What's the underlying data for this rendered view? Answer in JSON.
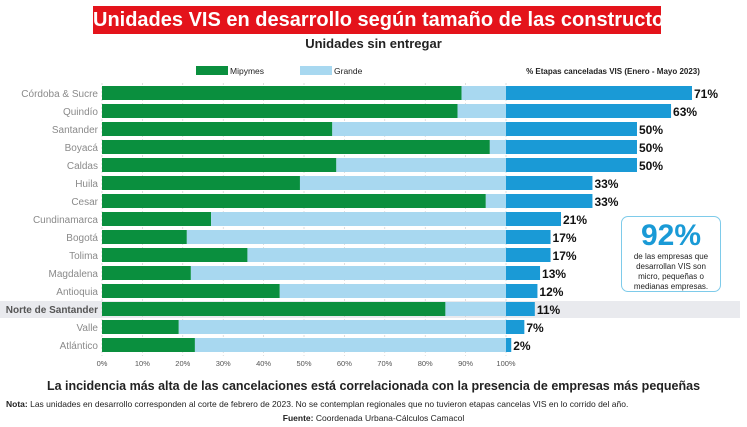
{
  "header": {
    "title": "Unidades VIS en desarrollo según tamaño de las constructoras",
    "subtitle": "Unidades sin entregar"
  },
  "legend": {
    "mipymes": "Mipymes",
    "grande": "Grande",
    "right_panel": "% Etapas canceladas VIS (Enero - Mayo 2023)"
  },
  "callout": {
    "big": "92%",
    "text": "de las empresas que desarrollan VIS son micro, pequeñas o medianas empresas."
  },
  "footer": {
    "main": "La incidencia más alta de las cancelaciones está correlacionada con la presencia de empresas más pequeñas",
    "note_label": "Nota:",
    "note_text": " Las unidades en desarrollo corresponden al corte de febrero de 2023. No se contemplan regionales que no tuvieron etapas cancelas VIS en lo corrido del año.",
    "source_label": "Fuente:",
    "source_text": " Coordenada Urbana-Cálculos Camacol"
  },
  "colors": {
    "mipymes": "#0a8f3e",
    "grande": "#a8d8f0",
    "cancel": "#1a9ad6",
    "highlight_row": "#e9eaee",
    "label_gray": "#8a8a8a"
  },
  "chart_data": [
    {
      "type": "bar",
      "orientation": "horizontal",
      "stacked": "percent",
      "categories": [
        "Córdoba & Sucre",
        "Quindío",
        "Santander",
        "Boyacá",
        "Caldas",
        "Huila",
        "Cesar",
        "Cundinamarca",
        "Bogotá",
        "Tolima",
        "Magdalena",
        "Antioquia",
        "Norte de Santander",
        "Valle",
        "Atlántico"
      ],
      "highlighted_category": "Norte de Santander",
      "series": [
        {
          "name": "Mipymes",
          "values": [
            89,
            88,
            57,
            96,
            58,
            49,
            95,
            27,
            21,
            36,
            22,
            44,
            85,
            19,
            23
          ]
        },
        {
          "name": "Grande",
          "values": [
            11,
            12,
            43,
            4,
            42,
            51,
            5,
            73,
            79,
            64,
            78,
            56,
            15,
            81,
            77
          ]
        }
      ],
      "x_ticks": [
        "0%",
        "10%",
        "20%",
        "30%",
        "40%",
        "50%",
        "60%",
        "70%",
        "80%",
        "90%",
        "100%"
      ],
      "xlim": [
        0,
        100
      ]
    },
    {
      "type": "bar",
      "orientation": "horizontal",
      "title": "% Etapas canceladas VIS (Enero - Mayo 2023)",
      "categories": [
        "Córdoba & Sucre",
        "Quindío",
        "Santander",
        "Boyacá",
        "Caldas",
        "Huila",
        "Cesar",
        "Cundinamarca",
        "Bogotá",
        "Tolima",
        "Magdalena",
        "Antioquia",
        "Norte de Santander",
        "Valle",
        "Atlántico"
      ],
      "values": [
        71,
        63,
        50,
        50,
        50,
        33,
        33,
        21,
        17,
        17,
        13,
        12,
        11,
        7,
        2
      ],
      "labels": [
        "71%",
        "63%",
        "50%",
        "50%",
        "50%",
        "33%",
        "33%",
        "21%",
        "17%",
        "17%",
        "13%",
        "12%",
        "11%",
        "7%",
        "2%"
      ],
      "xlim": [
        0,
        71
      ]
    }
  ]
}
